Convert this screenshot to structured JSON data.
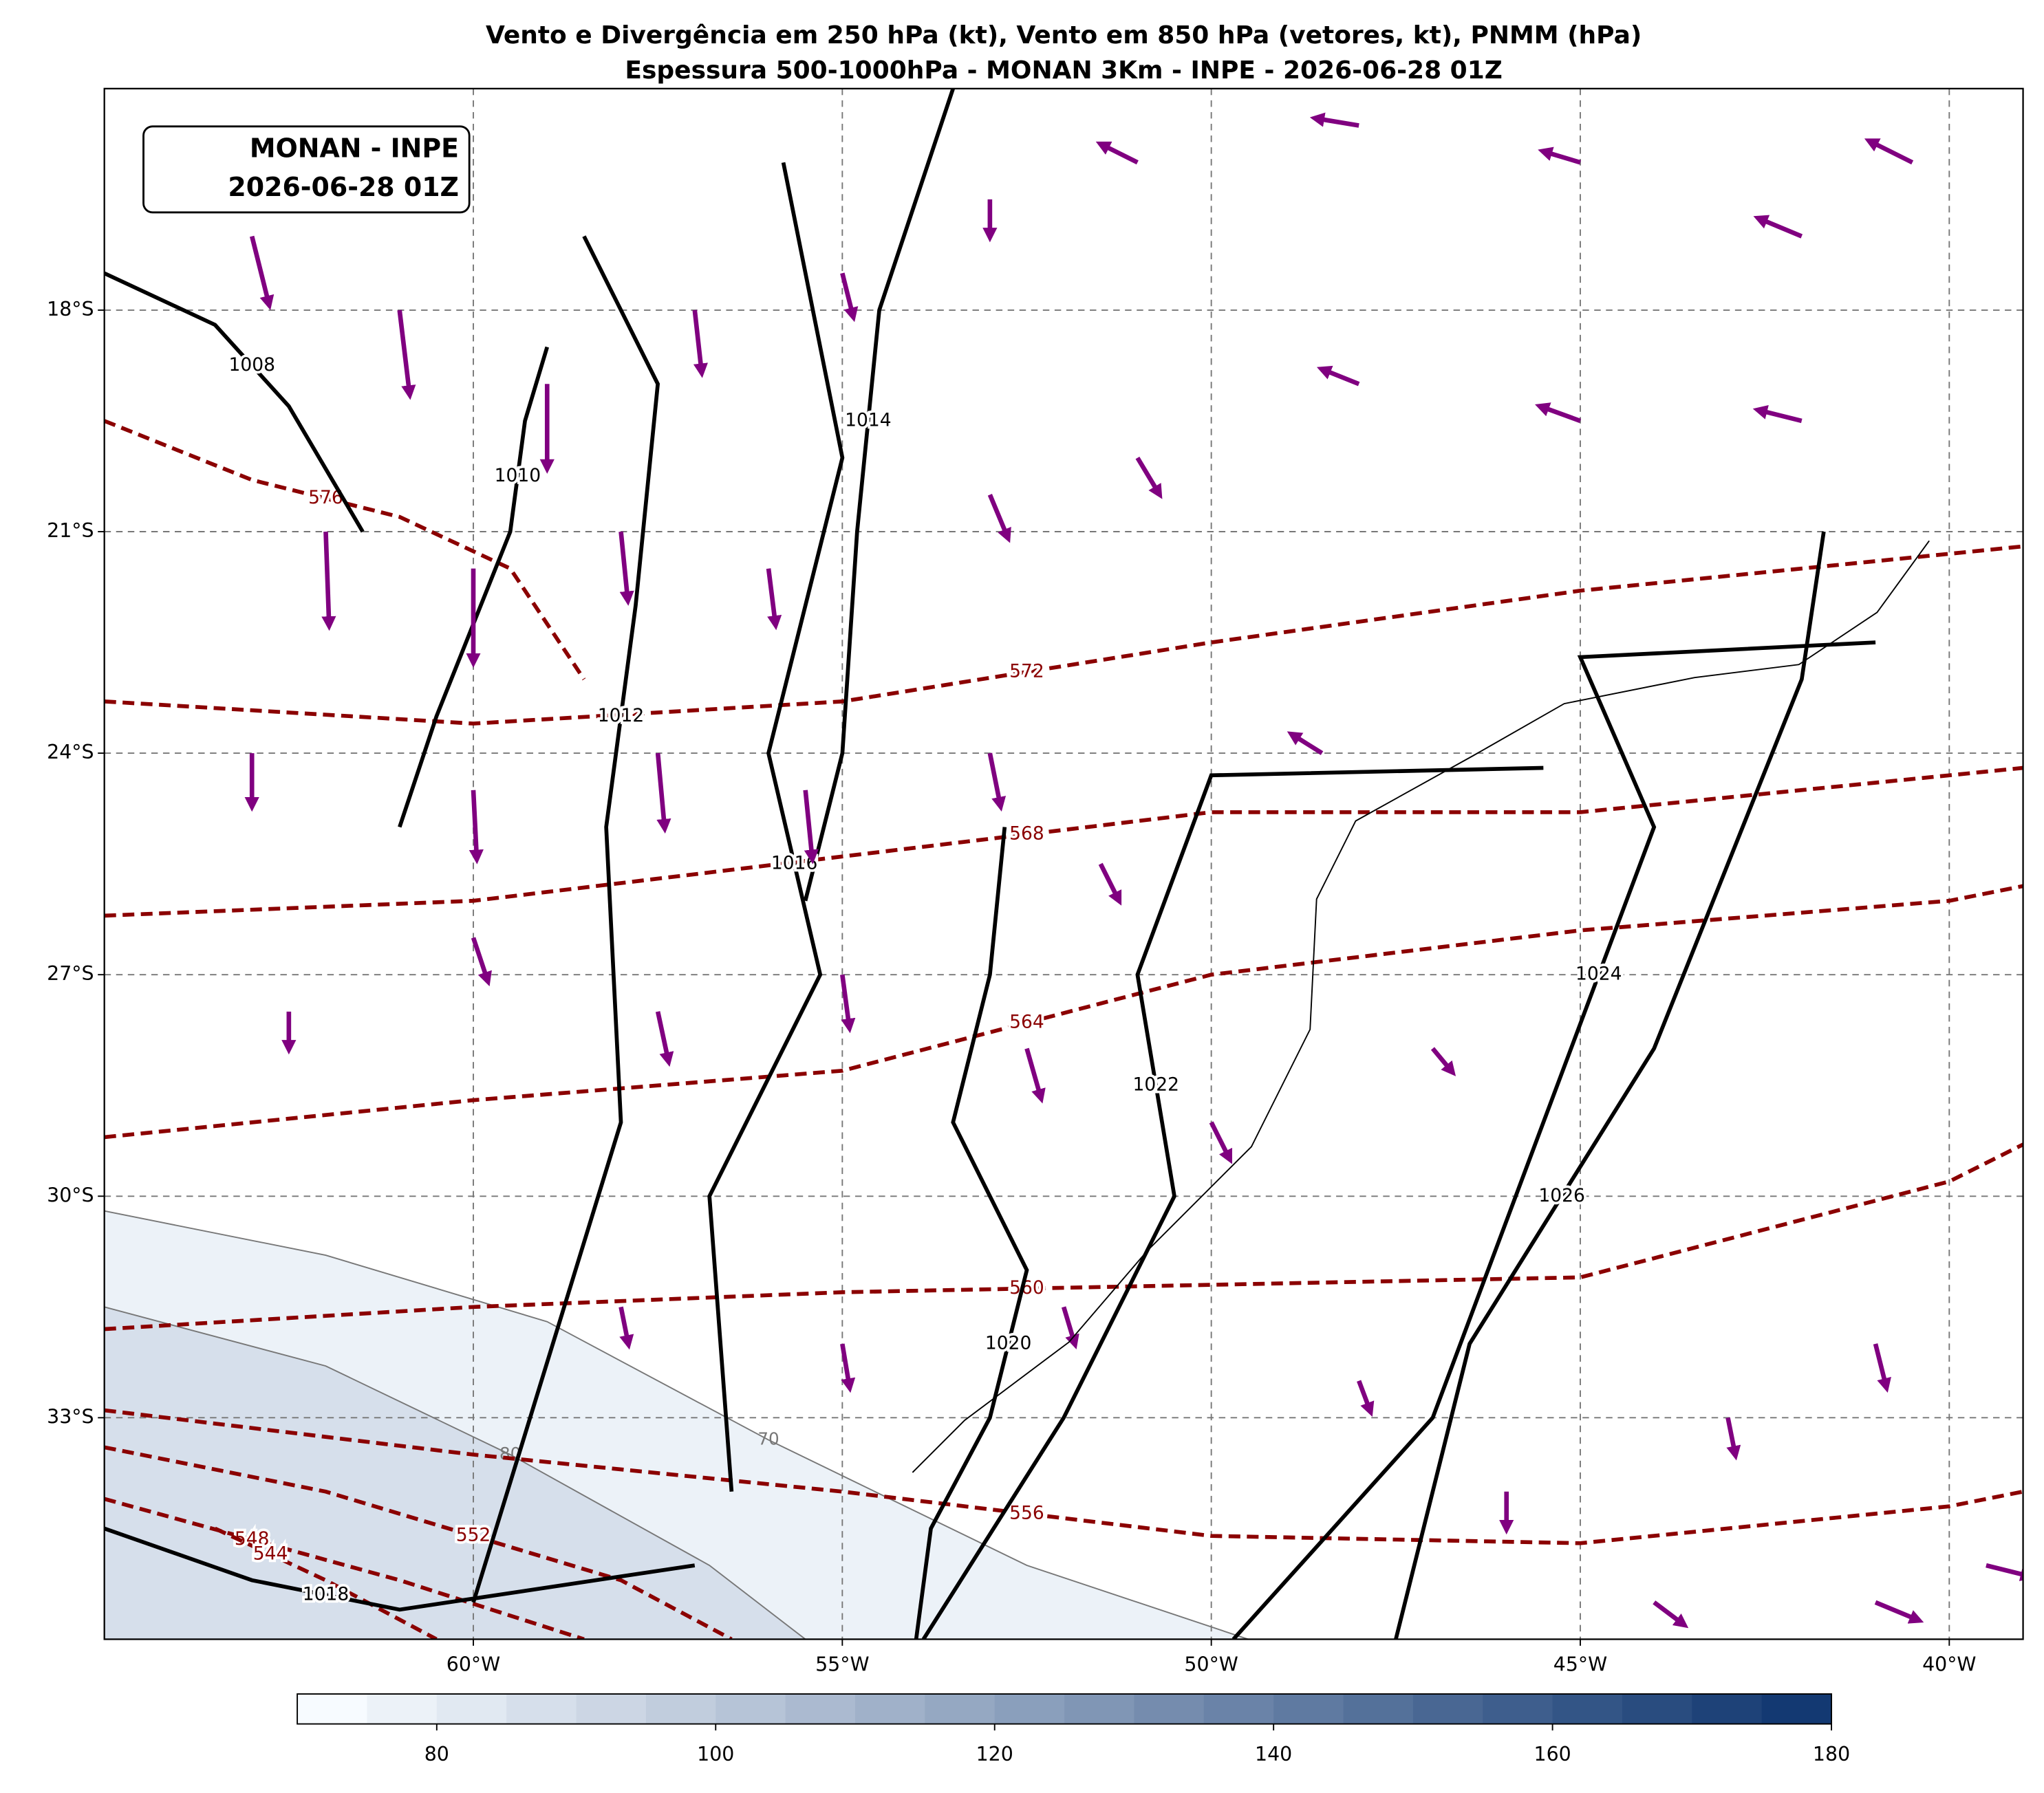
{
  "chart_data": {
    "type": "map",
    "title": "Vento e Divergência em 250 hPa (kt), Vento em 850 hPa (vetores, kt), PNMM (hPa)",
    "subtitle": "Espessura 500-1000hPa - MONAN 3Km - INPE - 2026-06-28 01Z",
    "annotation": [
      "MONAN - INPE",
      "2026-06-28 01Z"
    ],
    "xlim": [
      -65,
      -39
    ],
    "ylim": [
      -36,
      -15
    ],
    "xticks": [
      {
        "value": -60,
        "label": "60°W"
      },
      {
        "value": -55,
        "label": "55°W"
      },
      {
        "value": -50,
        "label": "50°W"
      },
      {
        "value": -45,
        "label": "45°W"
      },
      {
        "value": -40,
        "label": "40°W"
      }
    ],
    "yticks": [
      {
        "value": -18,
        "label": "18°S"
      },
      {
        "value": -21,
        "label": "21°S"
      },
      {
        "value": -24,
        "label": "24°S"
      },
      {
        "value": -27,
        "label": "27°S"
      },
      {
        "value": -30,
        "label": "30°S"
      },
      {
        "value": -33,
        "label": "33°S"
      }
    ],
    "grid": true,
    "colorbar": {
      "lim": [
        70,
        180
      ],
      "ticks": [
        80,
        100,
        120,
        140,
        160,
        180
      ],
      "step": 5,
      "cmap": [
        "#f7fbff",
        "#08306b"
      ]
    },
    "isotachs": [
      {
        "level": 70,
        "lon": [
          -65,
          -62,
          -59,
          -56,
          -52.5,
          -49.5
        ],
        "lat": [
          -30.2,
          -30.8,
          -31.7,
          -33.3,
          -35,
          -36
        ]
      },
      {
        "level": 80,
        "lon": [
          -65,
          -62,
          -59.5,
          -56.8,
          -55.5
        ],
        "lat": [
          -31.5,
          -32.3,
          -33.5,
          -35,
          -36
        ]
      }
    ],
    "thickness": {
      "color": "#8b0000",
      "contours": [
        {
          "level": 576,
          "lon": [
            -65,
            -63,
            -61,
            -59.5,
            -58.5
          ],
          "lat": [
            -19.5,
            -20.3,
            -20.8,
            -21.5,
            -23
          ]
        },
        {
          "level": 572,
          "lon": [
            -65,
            -60,
            -55,
            -50,
            -45,
            -40,
            -39
          ],
          "lat": [
            -23.3,
            -23.6,
            -23.3,
            -22.5,
            -21.8,
            -21.3,
            -21.2
          ]
        },
        {
          "level": 568,
          "lon": [
            -65,
            -60,
            -55,
            -50,
            -45,
            -40,
            -39
          ],
          "lat": [
            -26.2,
            -26,
            -25.4,
            -24.8,
            -24.8,
            -24.3,
            -24.2
          ]
        },
        {
          "level": 564,
          "lon": [
            -65,
            -60,
            -55,
            -50,
            -45,
            -40,
            -39
          ],
          "lat": [
            -29.2,
            -28.7,
            -28.3,
            -27,
            -26.4,
            -26,
            -25.8
          ]
        },
        {
          "level": 560,
          "lon": [
            -65,
            -60,
            -55,
            -50,
            -45,
            -40,
            -39
          ],
          "lat": [
            -31.8,
            -31.5,
            -31.3,
            -31.2,
            -31.1,
            -29.8,
            -29.3
          ]
        },
        {
          "level": 556,
          "lon": [
            -65,
            -60,
            -55,
            -50,
            -45,
            -40,
            -39
          ],
          "lat": [
            -32.9,
            -33.5,
            -34,
            -34.6,
            -34.7,
            -34.2,
            -34
          ]
        },
        {
          "level": 552,
          "lon": [
            -65,
            -62,
            -58,
            -56.5
          ],
          "lat": [
            -33.4,
            -34,
            -35.2,
            -36
          ]
        },
        {
          "level": 548,
          "lon": [
            -65,
            -61,
            -58.5
          ],
          "lat": [
            -34.1,
            -35.2,
            -36
          ]
        },
        {
          "level": 544,
          "lon": [
            -63.5,
            -62,
            -60.5
          ],
          "lat": [
            -34.5,
            -35.2,
            -36
          ]
        }
      ]
    },
    "pressure": {
      "color": "#000000",
      "contours": [
        {
          "level": 1008,
          "lon": [
            -65,
            -63.5,
            -62.5,
            -61.5
          ],
          "lat": [
            -17.5,
            -18.2,
            -19.3,
            -21
          ]
        },
        {
          "level": 1010,
          "lon": [
            -59,
            -59.3,
            -59.5,
            -60.5,
            -61
          ],
          "lat": [
            -18.5,
            -19.5,
            -21,
            -23.5,
            -25
          ]
        },
        {
          "level": 1012,
          "lon": [
            -58.5,
            -57.5,
            -57.8,
            -58.2,
            -58,
            -60
          ],
          "lat": [
            -17,
            -19,
            -22,
            -25,
            -29,
            -35.5
          ]
        },
        {
          "level": 1014,
          "lon": [
            -53.5,
            -54.5,
            -54.8,
            -55,
            -55.5
          ],
          "lat": [
            -15,
            -18,
            -21,
            -24,
            -26
          ]
        },
        {
          "level": 1016,
          "lon": [
            -55.8,
            -55,
            -56,
            -55.3,
            -56.8,
            -56.5
          ],
          "lat": [
            -16,
            -20,
            -24,
            -27,
            -30,
            -34
          ]
        },
        {
          "level": 1018,
          "lon": [
            -65,
            -63,
            -61,
            -57
          ],
          "lat": [
            -34.5,
            -35.2,
            -35.6,
            -35
          ]
        },
        {
          "level": 1020,
          "lon": [
            -54,
            -53.8,
            -53,
            -52.5,
            -53.5,
            -53,
            -52.8
          ],
          "lat": [
            -36,
            -34.5,
            -33,
            -31,
            -29,
            -27,
            -25
          ]
        },
        {
          "level": 1022,
          "lon": [
            -53.9,
            -52,
            -50.5,
            -51,
            -50,
            -45.5
          ],
          "lat": [
            -36,
            -33,
            -30,
            -27,
            -24.3,
            -24.2
          ]
        },
        {
          "level": 1024,
          "lon": [
            -49.7,
            -47,
            -45.5,
            -44,
            -45,
            -41
          ],
          "lat": [
            -36,
            -33,
            -29,
            -25,
            -22.7,
            -22.5
          ]
        },
        {
          "level": 1026,
          "lon": [
            -47.5,
            -46.5,
            -44,
            -42,
            -41.7
          ],
          "lat": [
            -36,
            -32,
            -28,
            -23,
            -21
          ]
        }
      ]
    },
    "vectors": {
      "color": "#800080",
      "lon": [
        -63,
        -61,
        -59,
        -57,
        -55,
        -53,
        -51,
        -48,
        -45,
        -42,
        -40.5,
        -62,
        -60,
        -58,
        -56,
        -53,
        -51,
        -48,
        -45,
        -42,
        -63,
        -60,
        -57.5,
        -55.5,
        -53,
        -51.5,
        -48.5,
        -62.5,
        -60,
        -57.5,
        -55,
        -52.5,
        -50,
        -47,
        -58,
        -55,
        -52,
        -46,
        -43,
        -41,
        -44,
        -41,
        -39.5,
        -48
      ],
      "lat": [
        -17,
        -18,
        -19,
        -18,
        -17.5,
        -16.5,
        -16,
        -15.5,
        -16,
        -17,
        -16,
        -21,
        -21.5,
        -21,
        -21.5,
        -20.5,
        -20,
        -19,
        -19.5,
        -19.5,
        -24,
        -24.5,
        -24,
        -24.5,
        -24,
        -25.5,
        -24,
        -27.5,
        -26.5,
        -27.5,
        -27,
        -28,
        -29,
        -28,
        -31.5,
        -32,
        -31.5,
        -34,
        -33,
        -32,
        -35.5,
        -35.5,
        -35,
        -32.5
      ],
      "u": [
        5,
        3,
        0,
        2,
        3,
        0,
        -10,
        -12,
        -10,
        -12,
        -12,
        1,
        0,
        2,
        2,
        5,
        6,
        -10,
        -11,
        -12,
        0,
        1,
        2,
        2,
        3,
        5,
        -8,
        0,
        4,
        3,
        2,
        4,
        5,
        5,
        2,
        2,
        3,
        0,
        2,
        3,
        8,
        12,
        12,
        3
      ],
      "v": [
        -20,
        -25,
        -25,
        -18,
        -12,
        -10,
        5,
        2,
        3,
        5,
        6,
        -28,
        -28,
        -20,
        -16,
        -12,
        -10,
        4,
        4,
        3,
        -15,
        -20,
        -22,
        -20,
        -15,
        -10,
        5,
        -10,
        -12,
        -14,
        -15,
        -14,
        -10,
        -6,
        -10,
        -12,
        -10,
        -10,
        -10,
        -12,
        -6,
        -5,
        -3,
        -8
      ]
    }
  }
}
